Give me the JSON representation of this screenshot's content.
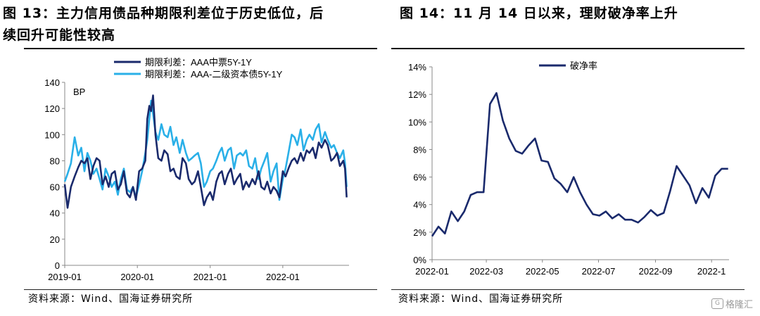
{
  "left": {
    "title_line1": "图 13：主力信用债品种期限利差位于历史低位，后",
    "title_line2": "续回升可能性较高",
    "source": "资料来源：Wind、国海证券研究所"
  },
  "right": {
    "title": "图 14：11 月 14 日以来，理财破净率上升",
    "source": "资料来源：Wind、国海证券研究所"
  },
  "watermark": {
    "text": "格隆汇",
    "icon": "logo-icon"
  },
  "chart_data": [
    {
      "type": "line",
      "title": "",
      "ylabel": "BP",
      "xlabel": "",
      "ylim": [
        0,
        140
      ],
      "yticks": [
        0,
        20,
        40,
        60,
        80,
        100,
        120,
        140
      ],
      "xlim": [
        "2019-01-01",
        "2022-11-30"
      ],
      "xticks": [
        "2019-01",
        "2020-01",
        "2021-01",
        "2022-01"
      ],
      "legend_position": "top",
      "colors": {
        "dark": "#1a2a6c",
        "light": "#2ab0e8"
      },
      "series": [
        {
          "name": "期限利差：AAA中票5Y-1Y",
          "color": "#1a2a6c",
          "x": [
            "2019-01-01",
            "2019-01-15",
            "2019-02-01",
            "2019-02-20",
            "2019-03-10",
            "2019-03-25",
            "2019-04-10",
            "2019-04-25",
            "2019-05-10",
            "2019-05-25",
            "2019-06-10",
            "2019-06-25",
            "2019-07-10",
            "2019-07-25",
            "2019-08-10",
            "2019-08-25",
            "2019-09-10",
            "2019-09-25",
            "2019-10-10",
            "2019-10-25",
            "2019-11-10",
            "2019-11-25",
            "2019-12-10",
            "2019-12-25",
            "2020-01-10",
            "2020-01-25",
            "2020-02-10",
            "2020-02-20",
            "2020-03-01",
            "2020-03-10",
            "2020-03-20",
            "2020-04-01",
            "2020-04-15",
            "2020-05-01",
            "2020-05-15",
            "2020-06-01",
            "2020-06-15",
            "2020-07-01",
            "2020-07-15",
            "2020-08-01",
            "2020-08-15",
            "2020-09-01",
            "2020-09-15",
            "2020-10-01",
            "2020-10-15",
            "2020-11-01",
            "2020-11-15",
            "2020-12-01",
            "2020-12-15",
            "2021-01-01",
            "2021-01-15",
            "2021-02-01",
            "2021-02-15",
            "2021-03-01",
            "2021-03-15",
            "2021-04-01",
            "2021-04-15",
            "2021-05-01",
            "2021-05-15",
            "2021-06-01",
            "2021-06-15",
            "2021-07-01",
            "2021-07-15",
            "2021-08-01",
            "2021-08-15",
            "2021-09-01",
            "2021-09-15",
            "2021-10-01",
            "2021-10-15",
            "2021-11-01",
            "2021-11-15",
            "2021-12-01",
            "2021-12-15",
            "2022-01-01",
            "2022-01-15",
            "2022-02-01",
            "2022-02-15",
            "2022-03-01",
            "2022-03-15",
            "2022-04-01",
            "2022-04-15",
            "2022-05-01",
            "2022-05-15",
            "2022-06-01",
            "2022-06-15",
            "2022-07-01",
            "2022-07-15",
            "2022-08-01",
            "2022-08-15",
            "2022-09-01",
            "2022-09-15",
            "2022-10-01",
            "2022-10-15",
            "2022-11-01",
            "2022-11-10",
            "2022-11-18"
          ],
          "values": [
            62,
            44,
            60,
            68,
            75,
            80,
            78,
            82,
            66,
            76,
            82,
            80,
            62,
            68,
            60,
            70,
            72,
            58,
            62,
            72,
            55,
            52,
            60,
            50,
            72,
            74,
            80,
            112,
            122,
            118,
            130,
            100,
            82,
            80,
            88,
            85,
            72,
            74,
            68,
            66,
            82,
            78,
            66,
            62,
            64,
            72,
            60,
            46,
            52,
            56,
            50,
            64,
            70,
            72,
            62,
            70,
            74,
            62,
            66,
            70,
            58,
            64,
            60,
            66,
            62,
            72,
            60,
            58,
            64,
            55,
            60,
            57,
            52,
            72,
            68,
            75,
            80,
            82,
            78,
            86,
            80,
            88,
            86,
            90,
            82,
            94,
            90,
            96,
            92,
            80,
            82,
            86,
            76,
            80,
            74,
            52
          ]
        },
        {
          "name": "期限利差：AAA-二级资本债5Y-1Y",
          "color": "#2ab0e8",
          "x": [
            "2019-01-01",
            "2019-01-15",
            "2019-02-01",
            "2019-02-20",
            "2019-03-10",
            "2019-03-25",
            "2019-04-10",
            "2019-04-25",
            "2019-05-10",
            "2019-05-25",
            "2019-06-10",
            "2019-06-25",
            "2019-07-10",
            "2019-07-25",
            "2019-08-10",
            "2019-08-25",
            "2019-09-10",
            "2019-09-25",
            "2019-10-10",
            "2019-10-25",
            "2019-11-10",
            "2019-11-25",
            "2019-12-10",
            "2019-12-25",
            "2020-01-10",
            "2020-01-25",
            "2020-02-10",
            "2020-02-20",
            "2020-03-01",
            "2020-03-10",
            "2020-03-20",
            "2020-04-01",
            "2020-04-15",
            "2020-05-01",
            "2020-05-15",
            "2020-06-01",
            "2020-06-15",
            "2020-07-01",
            "2020-07-15",
            "2020-08-01",
            "2020-08-15",
            "2020-09-01",
            "2020-09-15",
            "2020-10-01",
            "2020-10-15",
            "2020-11-01",
            "2020-11-15",
            "2020-12-01",
            "2020-12-15",
            "2021-01-01",
            "2021-01-15",
            "2021-02-01",
            "2021-02-15",
            "2021-03-01",
            "2021-03-15",
            "2021-04-01",
            "2021-04-15",
            "2021-05-01",
            "2021-05-15",
            "2021-06-01",
            "2021-06-15",
            "2021-07-01",
            "2021-07-15",
            "2021-08-01",
            "2021-08-15",
            "2021-09-01",
            "2021-09-15",
            "2021-10-01",
            "2021-10-15",
            "2021-11-01",
            "2021-11-15",
            "2021-12-01",
            "2021-12-15",
            "2022-01-01",
            "2022-01-15",
            "2022-02-01",
            "2022-02-15",
            "2022-03-01",
            "2022-03-15",
            "2022-04-01",
            "2022-04-15",
            "2022-05-01",
            "2022-05-15",
            "2022-06-01",
            "2022-06-15",
            "2022-07-01",
            "2022-07-15",
            "2022-08-01",
            "2022-08-15",
            "2022-09-01",
            "2022-09-15",
            "2022-10-01",
            "2022-10-15",
            "2022-11-01",
            "2022-11-10",
            "2022-11-18"
          ],
          "values": [
            64,
            70,
            78,
            98,
            84,
            90,
            72,
            86,
            80,
            70,
            74,
            66,
            58,
            74,
            68,
            60,
            64,
            54,
            66,
            74,
            58,
            56,
            60,
            52,
            62,
            72,
            86,
            96,
            112,
            126,
            116,
            102,
            96,
            108,
            100,
            98,
            106,
            92,
            98,
            86,
            96,
            86,
            80,
            82,
            84,
            86,
            78,
            60,
            64,
            72,
            74,
            80,
            86,
            90,
            80,
            88,
            90,
            74,
            84,
            86,
            84,
            88,
            76,
            74,
            82,
            66,
            74,
            80,
            86,
            64,
            72,
            78,
            50,
            66,
            74,
            88,
            100,
            98,
            92,
            104,
            88,
            96,
            100,
            96,
            104,
            108,
            94,
            102,
            96,
            90,
            92,
            86,
            82,
            88,
            78,
            60
          ]
        }
      ]
    },
    {
      "type": "line",
      "title": "",
      "xlabel": "",
      "ylabel": "",
      "ylim": [
        0,
        14
      ],
      "yticks": [
        0,
        2,
        4,
        6,
        8,
        10,
        12,
        14
      ],
      "y_unit": "%",
      "xlim": [
        "2022-01-01",
        "2022-11-20"
      ],
      "xticks": [
        "2022-01",
        "2022-03",
        "2022-05",
        "2022-07",
        "2022-09",
        "2022-1"
      ],
      "legend_position": "top-left",
      "series": [
        {
          "name": "破净率",
          "color": "#1a2a6c",
          "x": [
            "2022-01-01",
            "2022-01-08",
            "2022-01-15",
            "2022-01-22",
            "2022-01-29",
            "2022-02-05",
            "2022-02-12",
            "2022-02-19",
            "2022-02-26",
            "2022-03-05",
            "2022-03-12",
            "2022-03-19",
            "2022-03-26",
            "2022-04-02",
            "2022-04-09",
            "2022-04-16",
            "2022-04-23",
            "2022-04-30",
            "2022-05-07",
            "2022-05-14",
            "2022-05-21",
            "2022-05-28",
            "2022-06-04",
            "2022-06-11",
            "2022-06-18",
            "2022-06-25",
            "2022-07-02",
            "2022-07-09",
            "2022-07-16",
            "2022-07-23",
            "2022-07-30",
            "2022-08-06",
            "2022-08-13",
            "2022-08-20",
            "2022-08-27",
            "2022-09-03",
            "2022-09-10",
            "2022-09-17",
            "2022-09-24",
            "2022-10-01",
            "2022-10-08",
            "2022-10-15",
            "2022-10-22",
            "2022-10-29",
            "2022-11-05",
            "2022-11-12",
            "2022-11-19"
          ],
          "values": [
            1.7,
            2.4,
            1.9,
            3.5,
            2.8,
            3.5,
            4.7,
            4.9,
            4.9,
            11.3,
            12.1,
            10.1,
            8.8,
            7.9,
            7.7,
            8.3,
            8.8,
            7.2,
            7.1,
            5.9,
            5.5,
            4.9,
            6.0,
            4.9,
            4.0,
            3.3,
            3.2,
            3.5,
            3.0,
            3.3,
            2.9,
            2.9,
            2.7,
            3.1,
            3.6,
            3.2,
            3.4,
            5.0,
            6.8,
            6.1,
            5.4,
            4.1,
            5.2,
            4.5,
            6.1,
            6.6,
            6.6
          ]
        }
      ]
    }
  ]
}
